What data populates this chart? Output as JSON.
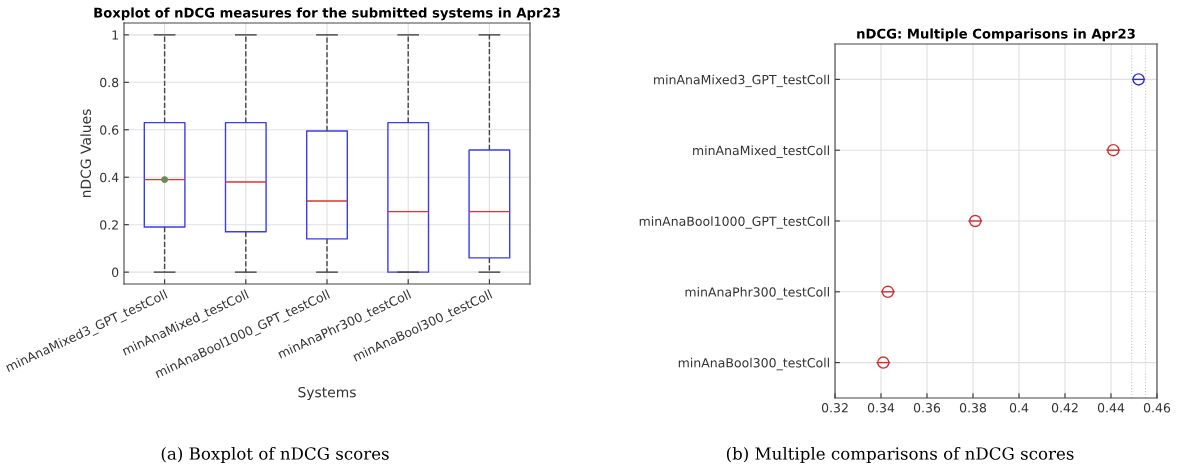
{
  "chart_data": [
    {
      "type": "box",
      "title": "Boxplot of nDCG measures for the submitted systems in Apr23",
      "xlabel": "Systems",
      "ylabel": "nDCG Values",
      "categories": [
        "minAnaMixed3_GPT_testColl",
        "minAnaMixed_testColl",
        "minAnaBool1000_GPT_testColl",
        "minAnaPhr300_testColl",
        "minAnaBool300_testColl"
      ],
      "series": [
        {
          "color": "#3b3bf0",
          "boxes": [
            {
              "low": 0,
              "q1": 0.19,
              "median": 0.39,
              "q3": 0.63,
              "high": 1,
              "mean": 0.39
            },
            {
              "low": 0,
              "q1": 0.17,
              "median": 0.38,
              "q3": 0.63,
              "high": 1
            },
            {
              "low": 0,
              "q1": 0.14,
              "median": 0.3,
              "q3": 0.595,
              "high": 1
            },
            {
              "low": 0,
              "q1": 0,
              "median": 0.255,
              "q3": 0.63,
              "high": 1
            },
            {
              "low": 0,
              "q1": 0.06,
              "median": 0.255,
              "q3": 0.515,
              "high": 1
            }
          ]
        }
      ],
      "ylim": [
        -0.05,
        1.05
      ],
      "yticks": [
        0,
        0.2,
        0.4,
        0.6,
        0.8,
        1
      ],
      "grid": true,
      "annotations": [
        "(a) Boxplot of nDCG scores"
      ]
    },
    {
      "type": "scatter",
      "orientation": "horizontal",
      "title": "nDCG: Multiple Comparisons in Apr23",
      "categories": [
        "minAnaMixed3_GPT_testColl",
        "minAnaMixed_testColl",
        "minAnaBool1000_GPT_testColl",
        "minAnaPhr300_testColl",
        "minAnaBool300_testColl"
      ],
      "series": [
        {
          "colors": [
            "#3030c0",
            "#d03030",
            "#d03030",
            "#d03030",
            "#d03030"
          ],
          "values": [
            0.452,
            0.441,
            0.381,
            0.343,
            0.341
          ],
          "errors": [
            0.003,
            0.003,
            0.003,
            0.003,
            0.003
          ]
        }
      ],
      "marker": "circle",
      "xlim": [
        0.32,
        0.46
      ],
      "xticks": [
        0.32,
        0.34,
        0.36,
        0.38,
        0.4,
        0.42,
        0.44,
        0.46
      ],
      "grid": true,
      "ref_lines": [
        {
          "axis": "x",
          "value": 0.449,
          "color": "#c8c8c8",
          "line_style": "dotted"
        },
        {
          "axis": "x",
          "value": 0.455,
          "color": "#c8c8c8",
          "line_style": "dotted"
        }
      ],
      "annotations": [
        "(b) Multiple comparisons of nDCG scores"
      ]
    }
  ]
}
